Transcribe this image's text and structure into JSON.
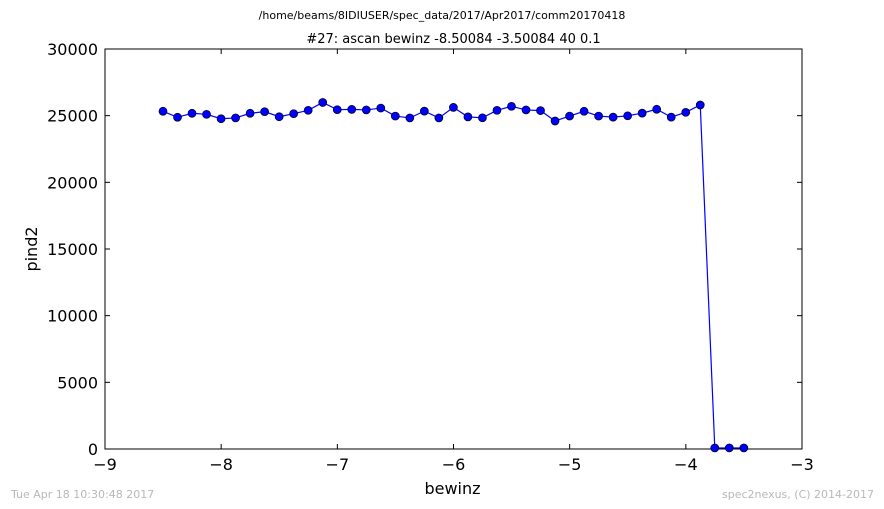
{
  "header": {
    "file_path": "/home/beams/8IDIUSER/spec_data/2017/Apr2017/comm20170418"
  },
  "footer": {
    "timestamp": "Tue Apr 18 10:30:48 2017",
    "credit": "spec2nexus, (C) 2014-2017"
  },
  "chart_data": {
    "type": "line",
    "title": "#27: ascan  bewinz -8.50084 -3.50084  40 0.1",
    "xlabel": "bewinz",
    "ylabel": "pind2",
    "xlim": [
      -9,
      -3
    ],
    "ylim": [
      0,
      30000
    ],
    "xticks": [
      -9,
      -8,
      -7,
      -6,
      -5,
      -4,
      -3
    ],
    "xtick_labels": [
      "−9",
      "−8",
      "−7",
      "−6",
      "−5",
      "−4",
      "−3"
    ],
    "yticks": [
      0,
      5000,
      10000,
      15000,
      20000,
      25000,
      30000
    ],
    "ytick_labels": [
      "0",
      "5000",
      "10000",
      "15000",
      "20000",
      "25000",
      "30000"
    ],
    "grid": false,
    "series_color": "#0000ff",
    "x": [
      -8.50084,
      -8.37584,
      -8.25084,
      -8.12584,
      -8.00084,
      -7.87584,
      -7.75084,
      -7.62584,
      -7.50084,
      -7.37584,
      -7.25084,
      -7.12584,
      -7.00084,
      -6.87584,
      -6.75084,
      -6.62584,
      -6.50084,
      -6.37584,
      -6.25084,
      -6.12584,
      -6.00084,
      -5.87584,
      -5.75084,
      -5.62584,
      -5.50084,
      -5.37584,
      -5.25084,
      -5.12584,
      -5.00084,
      -4.87584,
      -4.75084,
      -4.62584,
      -4.50084,
      -4.37584,
      -4.25084,
      -4.12584,
      -4.00084,
      -3.87584,
      -3.75084,
      -3.62584,
      -3.50084
    ],
    "y": [
      25330,
      24880,
      25180,
      25100,
      24770,
      24830,
      25180,
      25300,
      24920,
      25150,
      25400,
      25990,
      25450,
      25470,
      25430,
      25570,
      24970,
      24830,
      25340,
      24830,
      25620,
      24910,
      24840,
      25400,
      25700,
      25430,
      25380,
      24600,
      24970,
      25330,
      24970,
      24890,
      24990,
      25190,
      25480,
      24890,
      25250,
      25800,
      80,
      80,
      80
    ]
  }
}
